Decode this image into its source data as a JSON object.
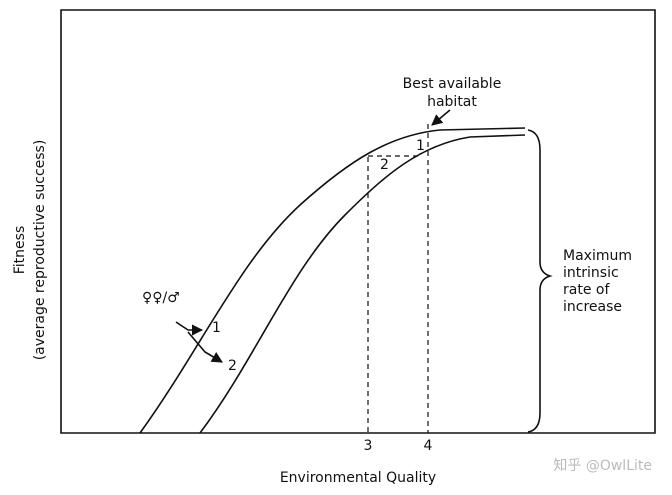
{
  "axes": {
    "y_title": [
      "Fitness",
      "(average reproductive success)"
    ],
    "x_title": "Environmental Quality"
  },
  "x_marks": [
    "3",
    "4"
  ],
  "curve_labels": [
    "1",
    "2"
  ],
  "plateau_labels": [
    "1",
    "2"
  ],
  "sex_ratio_label": "♀♀/♂",
  "annotation": [
    "Best available",
    "habitat"
  ],
  "brace_label": [
    "Maximum",
    "intrinsic",
    "rate of",
    "increase"
  ],
  "watermark": "知乎 @OwlLite"
}
